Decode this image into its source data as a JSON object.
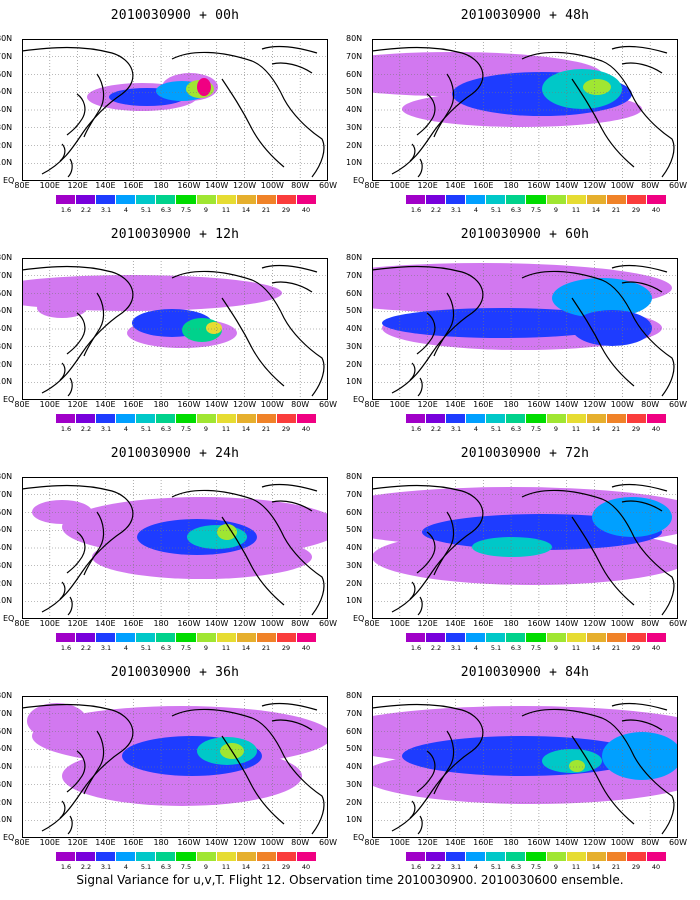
{
  "panels": [
    {
      "title": "2010030900 + 00h"
    },
    {
      "title": "2010030900 + 48h"
    },
    {
      "title": "2010030900 + 12h"
    },
    {
      "title": "2010030900 + 60h"
    },
    {
      "title": "2010030900 + 24h"
    },
    {
      "title": "2010030900 + 72h"
    },
    {
      "title": "2010030900 + 36h"
    },
    {
      "title": "2010030900 + 84h"
    }
  ],
  "lat_labels": [
    "80N",
    "70N",
    "60N",
    "50N",
    "40N",
    "30N",
    "20N",
    "10N",
    "EQ"
  ],
  "lon_labels": [
    "80E",
    "100E",
    "120E",
    "140E",
    "160E",
    "180",
    "160W",
    "140W",
    "120W",
    "100W",
    "80W",
    "60W"
  ],
  "colorbar": {
    "labels": [
      "1.6",
      "2.2",
      "3.1",
      "4",
      "5.1",
      "6.3",
      "7.5",
      "9",
      "11",
      "14",
      "21",
      "29",
      "40"
    ],
    "colors": [
      "#a000c8",
      "#7800dc",
      "#1e3cff",
      "#00a0ff",
      "#00c8c8",
      "#00d28c",
      "#00dc00",
      "#a0e632",
      "#e6dc32",
      "#e6af2d",
      "#f08228",
      "#fa3c3c",
      "#f00082"
    ]
  },
  "footer": "Signal Variance for u,v,T. Flight 12. Observation time 2010030900. 2010030600 ensemble."
}
